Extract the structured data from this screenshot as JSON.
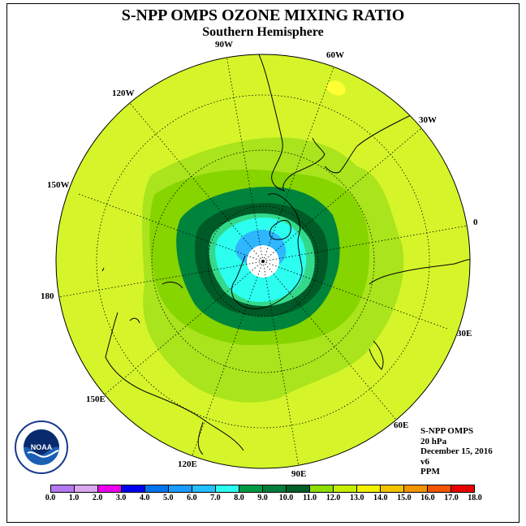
{
  "title": "S-NPP OMPS OZONE MIXING RATIO",
  "subtitle": "Southern Hemisphere",
  "longitude_labels": {
    "w90": "90W",
    "w60": "60W",
    "w30": "30W",
    "e0": "0",
    "w120": "120W",
    "w150": "150W",
    "deg180": "180",
    "e30": "30E",
    "e60": "60E",
    "e90": "90E",
    "e120": "120E",
    "e150": "150E"
  },
  "info": {
    "instrument": "S-NPP OMPS",
    "level": "20 hPa",
    "date": "December 15, 2016",
    "version": "v6",
    "units": "PPM"
  },
  "logo": {
    "text": "NOAA",
    "icon": "noaa-logo"
  },
  "colorbar": {
    "ticks": [
      "0.0",
      "1.0",
      "2.0",
      "3.0",
      "4.0",
      "5.0",
      "6.0",
      "7.0",
      "8.0",
      "9.0",
      "10.0",
      "11.0",
      "12.0",
      "13.0",
      "14.0",
      "15.0",
      "16.0",
      "17.0",
      "18.0"
    ],
    "colors": [
      "#b479f2",
      "#d9a8f0",
      "#ee00ee",
      "#0000ee",
      "#0074ee",
      "#1a9cff",
      "#24bfff",
      "#2cfff0",
      "#009a45",
      "#007d3a",
      "#005e28",
      "#8fde00",
      "#c6ef00",
      "#f2f200",
      "#f2c400",
      "#f29500",
      "#f25600",
      "#e80000",
      "#8a5a3c"
    ]
  },
  "map_colors": {
    "ocean_fill": "#d5f52a",
    "band_11": "#a9e41c",
    "band_10": "#86d400",
    "band_9": "#00843c",
    "band_8": "#005a27",
    "band_7": "#33d98a",
    "band_6": "#2cfff0",
    "band_5": "#2eb6ff",
    "pole": "#ffffff",
    "high": "#ffff33"
  }
}
